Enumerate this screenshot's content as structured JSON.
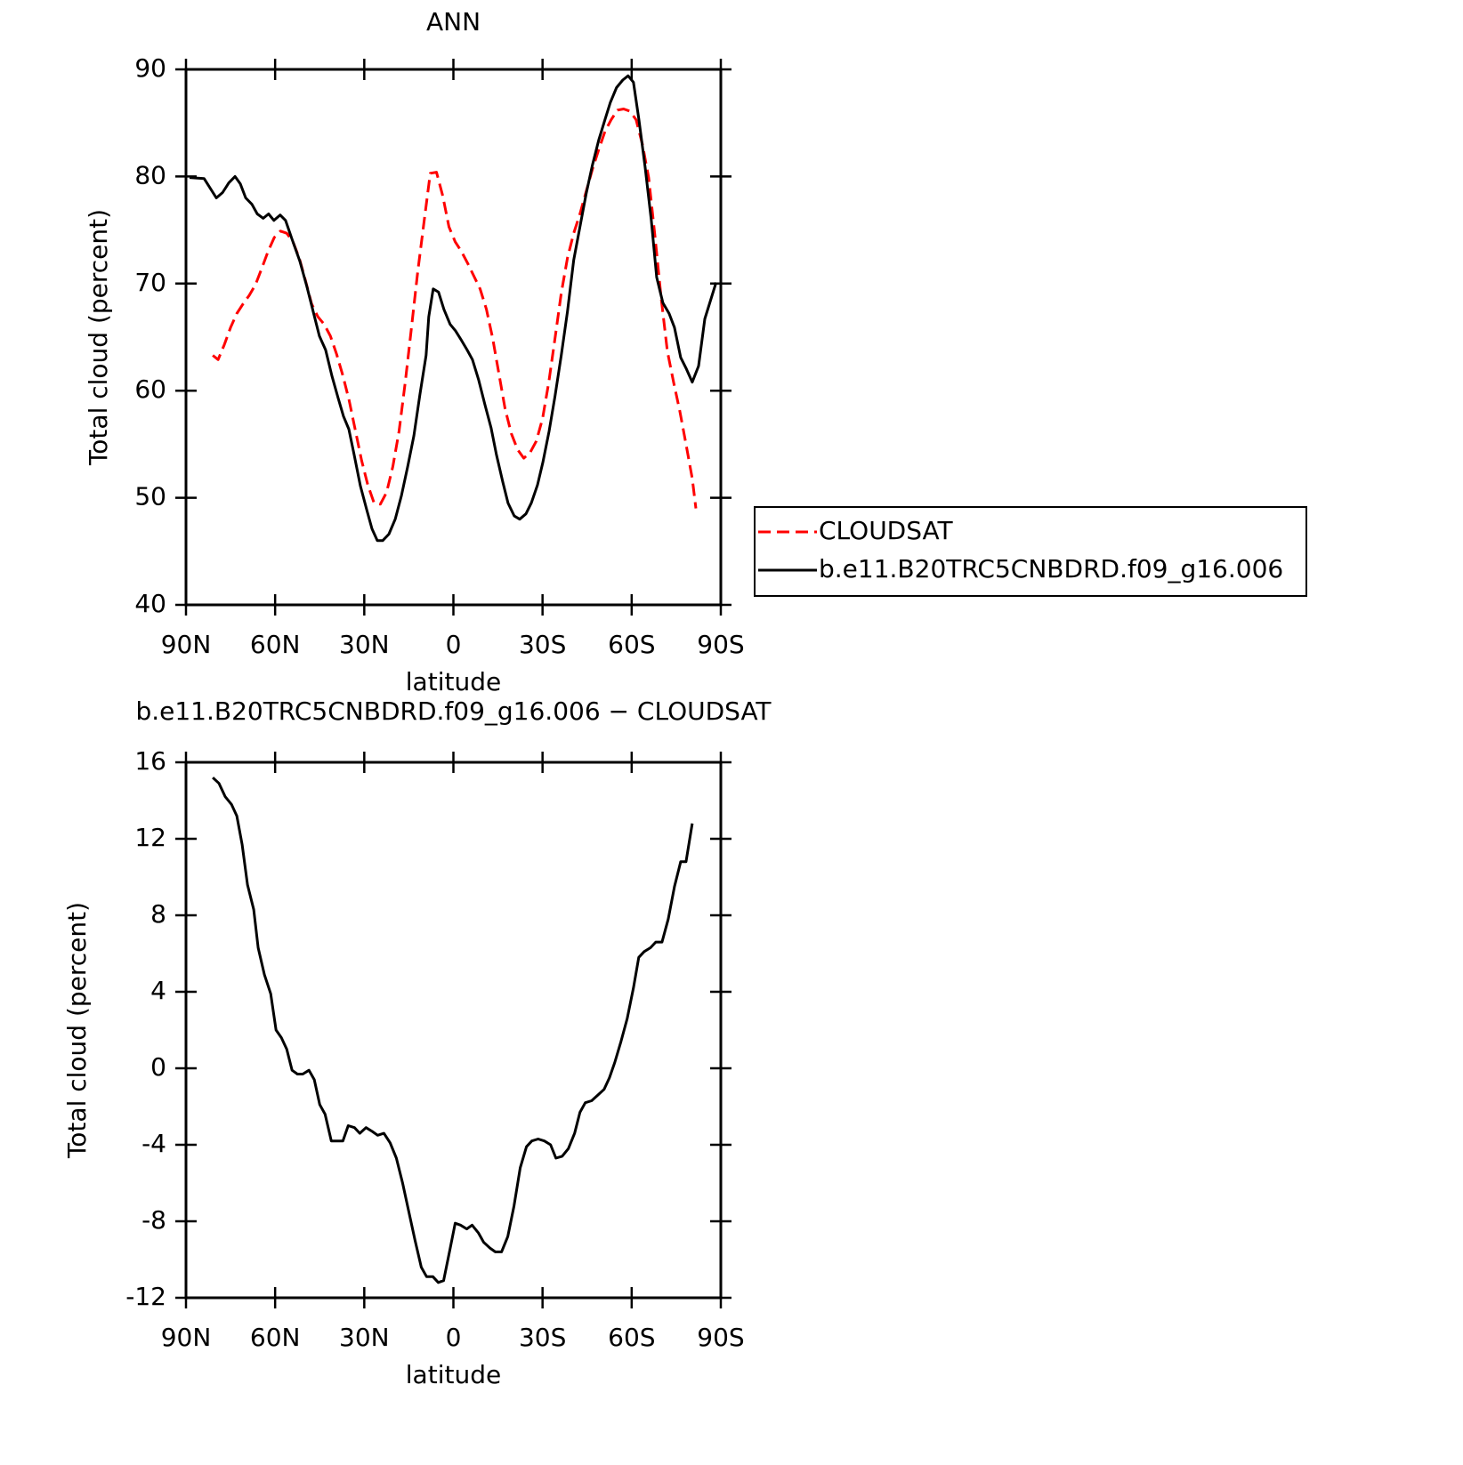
{
  "chart_data": [
    {
      "type": "line",
      "title": "ANN",
      "x_label": "latitude",
      "y_label": "Total cloud (percent)",
      "xlim": [
        90,
        -90
      ],
      "xticks": [
        {
          "value": 90,
          "label": "90N"
        },
        {
          "value": 60,
          "label": "60N"
        },
        {
          "value": 30,
          "label": "30N"
        },
        0,
        {
          "value": -30,
          "label": "30S"
        },
        {
          "value": -60,
          "label": "60S"
        },
        {
          "value": -90,
          "label": "90S"
        }
      ],
      "ylim": [
        40,
        90
      ],
      "yticks": [
        40,
        50,
        60,
        70,
        80,
        90
      ],
      "grid": false,
      "legend": "outside-right-bottom",
      "series": [
        {
          "name": "CLOUDSAT",
          "color": "#ff0000",
          "dashed": true,
          "x": [
            81.0,
            79.2,
            77.1,
            75.0,
            72.9,
            70.8,
            68.7,
            66.6,
            64.5,
            62.4,
            60.3,
            58.2,
            56.1,
            54.0,
            51.9,
            49.8,
            47.7,
            45.6,
            43.5,
            41.4,
            39.3,
            37.2,
            35.1,
            33.0,
            30.9,
            28.8,
            26.7,
            24.6,
            22.5,
            20.4,
            18.3,
            16.2,
            14.1,
            12.0,
            9.9,
            7.8,
            5.7,
            3.6,
            1.5,
            -0.6,
            -2.7,
            -4.8,
            -6.9,
            -9.0,
            -11.1,
            -13.2,
            -15.3,
            -17.4,
            -19.5,
            -21.6,
            -23.7,
            -25.8,
            -27.9,
            -30.0,
            -32.1,
            -34.2,
            -36.3,
            -38.4,
            -40.5,
            -42.6,
            -44.7,
            -46.8,
            -48.9,
            -51.0,
            -53.1,
            -55.2,
            -57.3,
            -59.4,
            -61.5,
            -63.6,
            -65.7,
            -67.8,
            -69.9,
            -72.0,
            -74.1,
            -76.2,
            -78.3,
            -80.4,
            -81.6
          ],
          "values": [
            63.3,
            62.9,
            64.3,
            65.9,
            67.2,
            68.1,
            68.9,
            69.9,
            71.4,
            73.0,
            74.3,
            74.9,
            74.7,
            73.9,
            72.4,
            70.3,
            68.1,
            66.9,
            66.2,
            65.1,
            63.4,
            61.4,
            59.1,
            56.3,
            53.5,
            51.2,
            49.5,
            49.4,
            50.5,
            52.9,
            56.2,
            60.8,
            65.9,
            71.1,
            75.7,
            80.3,
            80.4,
            78.2,
            75.3,
            73.9,
            73.0,
            71.9,
            70.7,
            69.5,
            67.6,
            64.9,
            61.6,
            58.3,
            56.0,
            54.5,
            53.7,
            54.2,
            55.3,
            57.4,
            60.8,
            64.9,
            69.1,
            72.4,
            74.7,
            76.5,
            78.6,
            80.7,
            82.5,
            84.2,
            85.3,
            86.2,
            86.3,
            86.1,
            85.3,
            83.0,
            79.9,
            74.5,
            68.7,
            63.7,
            60.8,
            58.1,
            55.0,
            51.8,
            49.0
          ]
        },
        {
          "name": "b.e11.B20TRC5CNBDRD.f09_g16.006",
          "color": "#000000",
          "dashed": false,
          "x": [
            88.8,
            83.9,
            79.8,
            77.7,
            75.6,
            73.5,
            71.7,
            69.9,
            67.8,
            66.0,
            64.0,
            62.2,
            60.4,
            58.3,
            56.5,
            54.4,
            51.7,
            49.3,
            47.2,
            45.1,
            43.0,
            40.9,
            38.8,
            37.0,
            35.2,
            33.4,
            31.3,
            29.2,
            27.4,
            25.6,
            23.8,
            21.7,
            19.6,
            17.5,
            15.4,
            13.3,
            11.3,
            9.2,
            8.3,
            6.8,
            5.0,
            3.2,
            1.1,
            -0.7,
            -2.5,
            -4.6,
            -6.4,
            -8.5,
            -10.6,
            -12.7,
            -14.5,
            -16.6,
            -18.4,
            -20.5,
            -22.3,
            -24.4,
            -26.2,
            -28.3,
            -30.1,
            -32.2,
            -34.2,
            -36.3,
            -38.4,
            -40.5,
            -42.6,
            -44.7,
            -46.8,
            -48.9,
            -51.0,
            -52.8,
            -54.9,
            -57.0,
            -58.8,
            -60.6,
            -62.4,
            -64.5,
            -66.6,
            -68.4,
            -70.5,
            -72.6,
            -74.4,
            -76.5,
            -78.3,
            -80.4,
            -82.5,
            -84.6,
            -88.4
          ],
          "values": [
            79.9,
            79.8,
            78.0,
            78.5,
            79.4,
            80.0,
            79.3,
            78.0,
            77.4,
            76.5,
            76.1,
            76.5,
            75.9,
            76.4,
            75.9,
            74.2,
            72.1,
            69.7,
            67.4,
            65.1,
            63.8,
            61.4,
            59.3,
            57.6,
            56.4,
            54.0,
            51.1,
            48.9,
            47.1,
            46.0,
            46.0,
            46.6,
            48.0,
            50.2,
            52.9,
            55.8,
            59.6,
            63.3,
            66.9,
            69.5,
            69.2,
            67.6,
            66.2,
            65.6,
            64.8,
            63.8,
            62.9,
            61.0,
            58.7,
            56.5,
            54.0,
            51.5,
            49.5,
            48.3,
            48.0,
            48.5,
            49.5,
            51.2,
            53.3,
            56.2,
            59.5,
            63.3,
            67.4,
            72.2,
            75.3,
            78.4,
            81.1,
            83.4,
            85.3,
            86.9,
            88.3,
            89.0,
            89.4,
            88.8,
            85.4,
            80.9,
            75.9,
            70.6,
            68.2,
            67.2,
            65.9,
            63.1,
            62.1,
            60.8,
            62.3,
            66.7,
            70.1
          ]
        }
      ]
    },
    {
      "type": "line",
      "title": "b.e11.B20TRC5CNBDRD.f09_g16.006 − CLOUDSAT",
      "x_label": "latitude",
      "y_label": "Total cloud (percent)",
      "xlim": [
        90,
        -90
      ],
      "xticks": [
        {
          "value": 90,
          "label": "90N"
        },
        {
          "value": 60,
          "label": "60N"
        },
        {
          "value": 30,
          "label": "30N"
        },
        0,
        {
          "value": -30,
          "label": "30S"
        },
        {
          "value": -60,
          "label": "60S"
        },
        {
          "value": -90,
          "label": "90S"
        }
      ],
      "ylim": [
        -12,
        16
      ],
      "yticks": [
        -12,
        -8,
        -4,
        0,
        4,
        8,
        12,
        16
      ],
      "grid": false,
      "series": [
        {
          "color": "#000000",
          "dashed": false,
          "x": [
            81.0,
            78.9,
            76.8,
            74.7,
            72.9,
            71.1,
            69.3,
            67.2,
            65.7,
            63.6,
            61.5,
            59.7,
            57.9,
            56.1,
            54.3,
            52.5,
            50.7,
            48.6,
            46.8,
            45.0,
            43.2,
            41.1,
            39.3,
            37.2,
            35.4,
            33.3,
            31.5,
            29.4,
            27.3,
            25.5,
            23.4,
            21.3,
            19.2,
            17.1,
            15.0,
            12.9,
            10.8,
            9.0,
            6.9,
            5.1,
            3.3,
            1.2,
            -0.6,
            -2.4,
            -4.5,
            -6.3,
            -8.4,
            -10.2,
            -12.3,
            -14.1,
            -16.2,
            -18.3,
            -20.4,
            -22.5,
            -24.6,
            -26.4,
            -28.5,
            -30.6,
            -32.7,
            -34.5,
            -36.6,
            -38.7,
            -40.8,
            -42.6,
            -44.4,
            -46.5,
            -48.6,
            -50.7,
            -52.5,
            -54.3,
            -56.4,
            -58.5,
            -60.6,
            -62.4,
            -64.2,
            -66.3,
            -68.1,
            -70.2,
            -72.3,
            -74.4,
            -76.5,
            -78.3,
            -80.4
          ],
          "values": [
            15.2,
            14.9,
            14.2,
            13.8,
            13.2,
            11.7,
            9.6,
            8.3,
            6.3,
            4.9,
            3.9,
            2.0,
            1.6,
            1.0,
            -0.1,
            -0.3,
            -0.3,
            -0.1,
            -0.6,
            -1.9,
            -2.4,
            -3.8,
            -3.8,
            -3.8,
            -3.0,
            -3.1,
            -3.4,
            -3.1,
            -3.3,
            -3.5,
            -3.4,
            -3.9,
            -4.7,
            -6.0,
            -7.5,
            -9.0,
            -10.4,
            -10.9,
            -10.9,
            -11.2,
            -11.1,
            -9.5,
            -8.1,
            -8.2,
            -8.4,
            -8.2,
            -8.6,
            -9.1,
            -9.4,
            -9.6,
            -9.6,
            -8.8,
            -7.2,
            -5.2,
            -4.1,
            -3.8,
            -3.7,
            -3.8,
            -4.0,
            -4.7,
            -4.6,
            -4.2,
            -3.4,
            -2.3,
            -1.8,
            -1.7,
            -1.4,
            -1.1,
            -0.5,
            0.3,
            1.4,
            2.6,
            4.2,
            5.8,
            6.1,
            6.3,
            6.6,
            6.6,
            7.8,
            9.5,
            10.8,
            10.8,
            12.8
          ]
        }
      ]
    }
  ]
}
